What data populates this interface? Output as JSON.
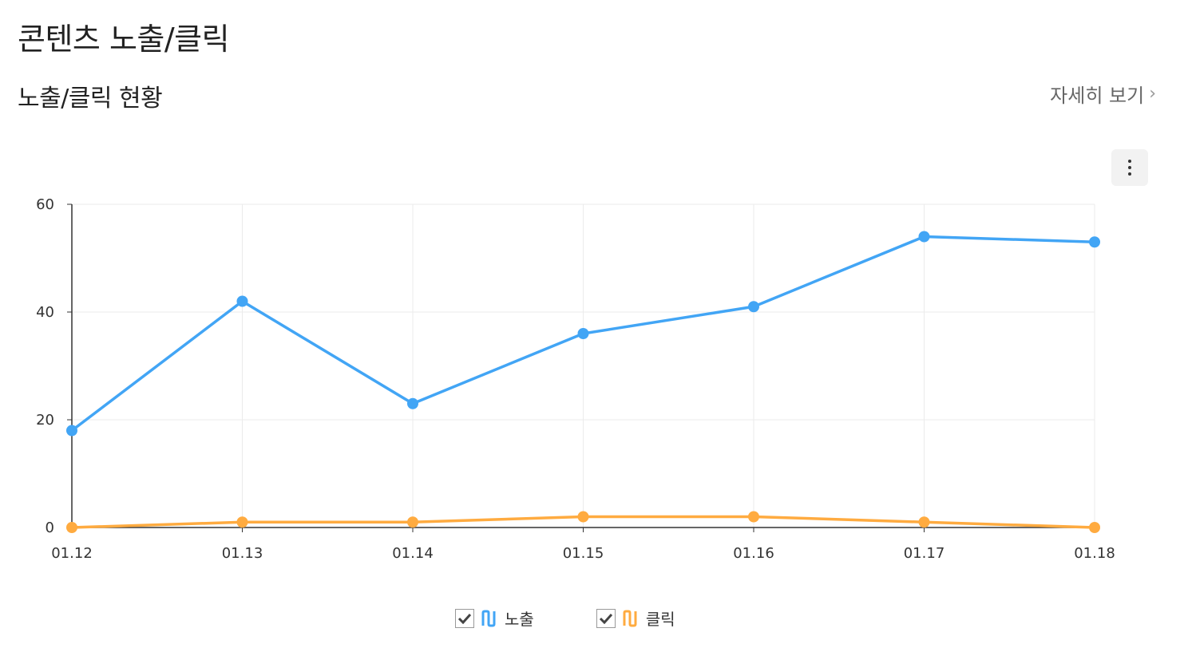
{
  "header": {
    "page_title": "콘텐츠 노출/클릭",
    "section_title": "노출/클릭 현황",
    "detail_link": "자세히 보기"
  },
  "menu": {
    "icon": "more-vertical-icon"
  },
  "legend": {
    "items": [
      {
        "label": "노출",
        "checked": true,
        "color": "#42a5f5",
        "icon": "line-series-icon"
      },
      {
        "label": "클릭",
        "checked": true,
        "color": "#ffab40",
        "icon": "line-series-icon"
      }
    ]
  },
  "chart_data": {
    "type": "line",
    "x": [
      "01.12",
      "01.13",
      "01.14",
      "01.15",
      "01.16",
      "01.17",
      "01.18"
    ],
    "series": [
      {
        "name": "노출",
        "color": "#42a5f5",
        "values": [
          18,
          42,
          23,
          36,
          41,
          54,
          53
        ]
      },
      {
        "name": "클릭",
        "color": "#ffab40",
        "values": [
          0,
          1,
          1,
          2,
          2,
          1,
          0
        ]
      }
    ],
    "ylim": [
      0,
      60
    ],
    "yticks": [
      0,
      20,
      40,
      60
    ],
    "grid": true
  }
}
